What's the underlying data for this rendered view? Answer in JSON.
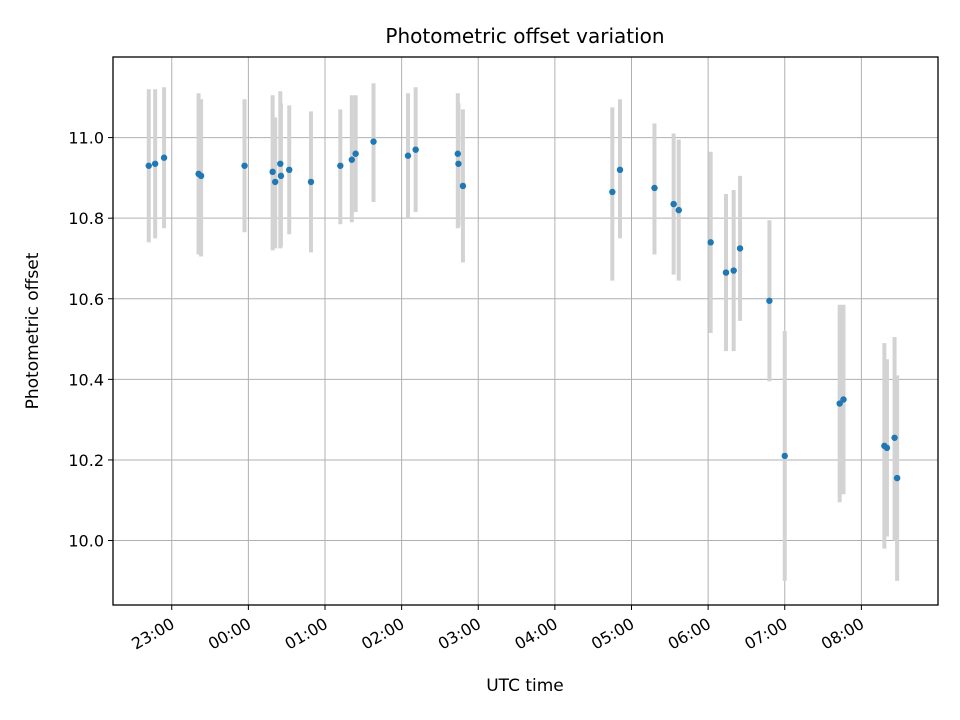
{
  "chart_data": {
    "type": "scatter",
    "title": "Photometric offset variation",
    "xlabel": "UTC time",
    "ylabel": "Photometric offset",
    "grid": true,
    "x_ticks": [
      "23:00",
      "00:00",
      "01:00",
      "02:00",
      "03:00",
      "04:00",
      "05:00",
      "06:00",
      "07:00",
      "08:00"
    ],
    "x_tick_minutes": [
      -60,
      0,
      60,
      120,
      180,
      240,
      300,
      360,
      420,
      480
    ],
    "xlim_minutes": [
      -106,
      540
    ],
    "y_ticks": [
      "10.0",
      "10.2",
      "10.4",
      "10.6",
      "10.8",
      "11.0"
    ],
    "y_tick_values": [
      10.0,
      10.2,
      10.4,
      10.6,
      10.8,
      11.0
    ],
    "ylim": [
      9.84,
      11.2
    ],
    "colors": {
      "point": "#1f77b4",
      "errorbar": "#d3d3d3",
      "grid": "#b0b0b0"
    },
    "series": [
      {
        "points": [
          {
            "t": -78,
            "y": 10.93,
            "lo": 10.74,
            "hi": 11.12
          },
          {
            "t": -73,
            "y": 10.935,
            "lo": 10.75,
            "hi": 11.12
          },
          {
            "t": -66,
            "y": 10.95,
            "lo": 10.775,
            "hi": 11.125
          },
          {
            "t": -39,
            "y": 10.91,
            "lo": 10.71,
            "hi": 11.11
          },
          {
            "t": -37,
            "y": 10.905,
            "lo": 10.705,
            "hi": 11.095
          },
          {
            "t": -3,
            "y": 10.93,
            "lo": 10.765,
            "hi": 11.095
          },
          {
            "t": 19,
            "y": 10.915,
            "lo": 10.72,
            "hi": 11.105
          },
          {
            "t": 21,
            "y": 10.89,
            "lo": 10.725,
            "hi": 11.05
          },
          {
            "t": 25,
            "y": 10.935,
            "lo": 10.725,
            "hi": 11.115
          },
          {
            "t": 25.5,
            "y": 10.905,
            "lo": 10.73,
            "hi": 11.085
          },
          {
            "t": 32,
            "y": 10.92,
            "lo": 10.76,
            "hi": 11.08
          },
          {
            "t": 49,
            "y": 10.89,
            "lo": 10.715,
            "hi": 11.065
          },
          {
            "t": 72,
            "y": 10.93,
            "lo": 10.785,
            "hi": 11.07
          },
          {
            "t": 81,
            "y": 10.945,
            "lo": 10.79,
            "hi": 11.105
          },
          {
            "t": 84,
            "y": 10.96,
            "lo": 10.815,
            "hi": 11.105
          },
          {
            "t": 98,
            "y": 10.99,
            "lo": 10.84,
            "hi": 11.135
          },
          {
            "t": 125,
            "y": 10.955,
            "lo": 10.8,
            "hi": 11.11
          },
          {
            "t": 131,
            "y": 10.97,
            "lo": 10.815,
            "hi": 11.125
          },
          {
            "t": 164,
            "y": 10.96,
            "lo": 10.775,
            "hi": 11.11
          },
          {
            "t": 164.5,
            "y": 10.935,
            "lo": 10.78,
            "hi": 11.085
          },
          {
            "t": 168,
            "y": 10.88,
            "lo": 10.69,
            "hi": 11.07
          },
          {
            "t": 285,
            "y": 10.865,
            "lo": 10.645,
            "hi": 11.075
          },
          {
            "t": 291,
            "y": 10.92,
            "lo": 10.75,
            "hi": 11.095
          },
          {
            "t": 318,
            "y": 10.875,
            "lo": 10.71,
            "hi": 11.035
          },
          {
            "t": 333,
            "y": 10.835,
            "lo": 10.66,
            "hi": 11.01
          },
          {
            "t": 337,
            "y": 10.82,
            "lo": 10.645,
            "hi": 10.995
          },
          {
            "t": 362,
            "y": 10.74,
            "lo": 10.515,
            "hi": 10.965
          },
          {
            "t": 374,
            "y": 10.665,
            "lo": 10.47,
            "hi": 10.86
          },
          {
            "t": 380,
            "y": 10.67,
            "lo": 10.47,
            "hi": 10.87
          },
          {
            "t": 385,
            "y": 10.725,
            "lo": 10.545,
            "hi": 10.905
          },
          {
            "t": 408,
            "y": 10.595,
            "lo": 10.395,
            "hi": 10.795
          },
          {
            "t": 420,
            "y": 10.21,
            "lo": 9.9,
            "hi": 10.52
          },
          {
            "t": 463,
            "y": 10.34,
            "lo": 10.095,
            "hi": 10.585
          },
          {
            "t": 466,
            "y": 10.35,
            "lo": 10.115,
            "hi": 10.585
          },
          {
            "t": 498,
            "y": 10.235,
            "lo": 9.98,
            "hi": 10.49
          },
          {
            "t": 500,
            "y": 10.23,
            "lo": 10.01,
            "hi": 10.45
          },
          {
            "t": 506,
            "y": 10.255,
            "lo": 10.0,
            "hi": 10.505
          },
          {
            "t": 508,
            "y": 10.155,
            "lo": 9.9,
            "hi": 10.41
          }
        ]
      }
    ]
  }
}
